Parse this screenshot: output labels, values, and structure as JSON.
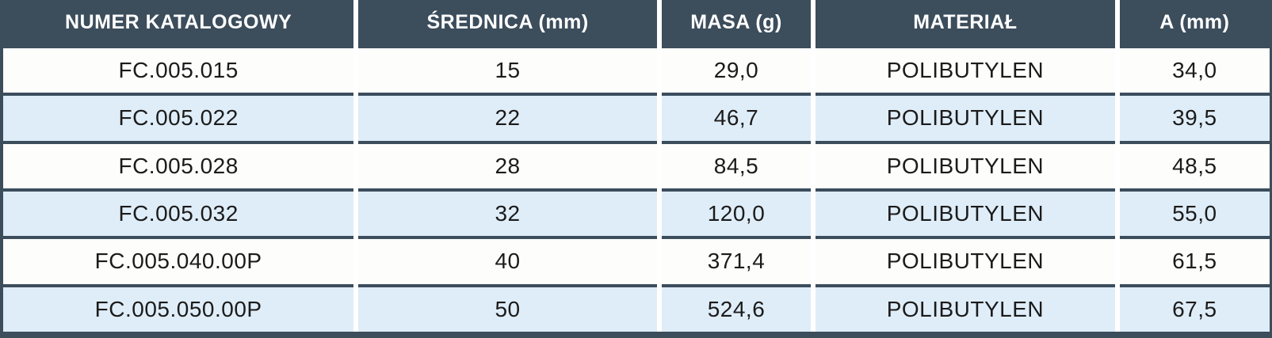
{
  "table": {
    "columns": [
      {
        "label": "NUMER KATALOGOWY"
      },
      {
        "label": "ŚREDNICA (mm)"
      },
      {
        "label": "MASA (g)"
      },
      {
        "label": "MATERIAŁ"
      },
      {
        "label": "A (mm)"
      }
    ],
    "rows": [
      {
        "catalog_number": "FC.005.015",
        "diameter_mm": "15",
        "mass_g": "29,0",
        "material": "POLIBUTYLEN",
        "a_mm": "34,0"
      },
      {
        "catalog_number": "FC.005.022",
        "diameter_mm": "22",
        "mass_g": "46,7",
        "material": "POLIBUTYLEN",
        "a_mm": "39,5"
      },
      {
        "catalog_number": "FC.005.028",
        "diameter_mm": "28",
        "mass_g": "84,5",
        "material": "POLIBUTYLEN",
        "a_mm": "48,5"
      },
      {
        "catalog_number": "FC.005.032",
        "diameter_mm": "32",
        "mass_g": "120,0",
        "material": "POLIBUTYLEN",
        "a_mm": "55,0"
      },
      {
        "catalog_number": "FC.005.040.00P",
        "diameter_mm": "40",
        "mass_g": "371,4",
        "material": "POLIBUTYLEN",
        "a_mm": "61,5"
      },
      {
        "catalog_number": "FC.005.050.00P",
        "diameter_mm": "50",
        "mass_g": "524,6",
        "material": "POLIBUTYLEN",
        "a_mm": "67,5"
      }
    ]
  },
  "colors": {
    "header_bg": "#3C4D5C",
    "row_bg": "#FDFDFC",
    "row_alt_bg": "#DFEDF8",
    "header_text": "#FFFFFF",
    "body_text": "#1B1B1B"
  }
}
